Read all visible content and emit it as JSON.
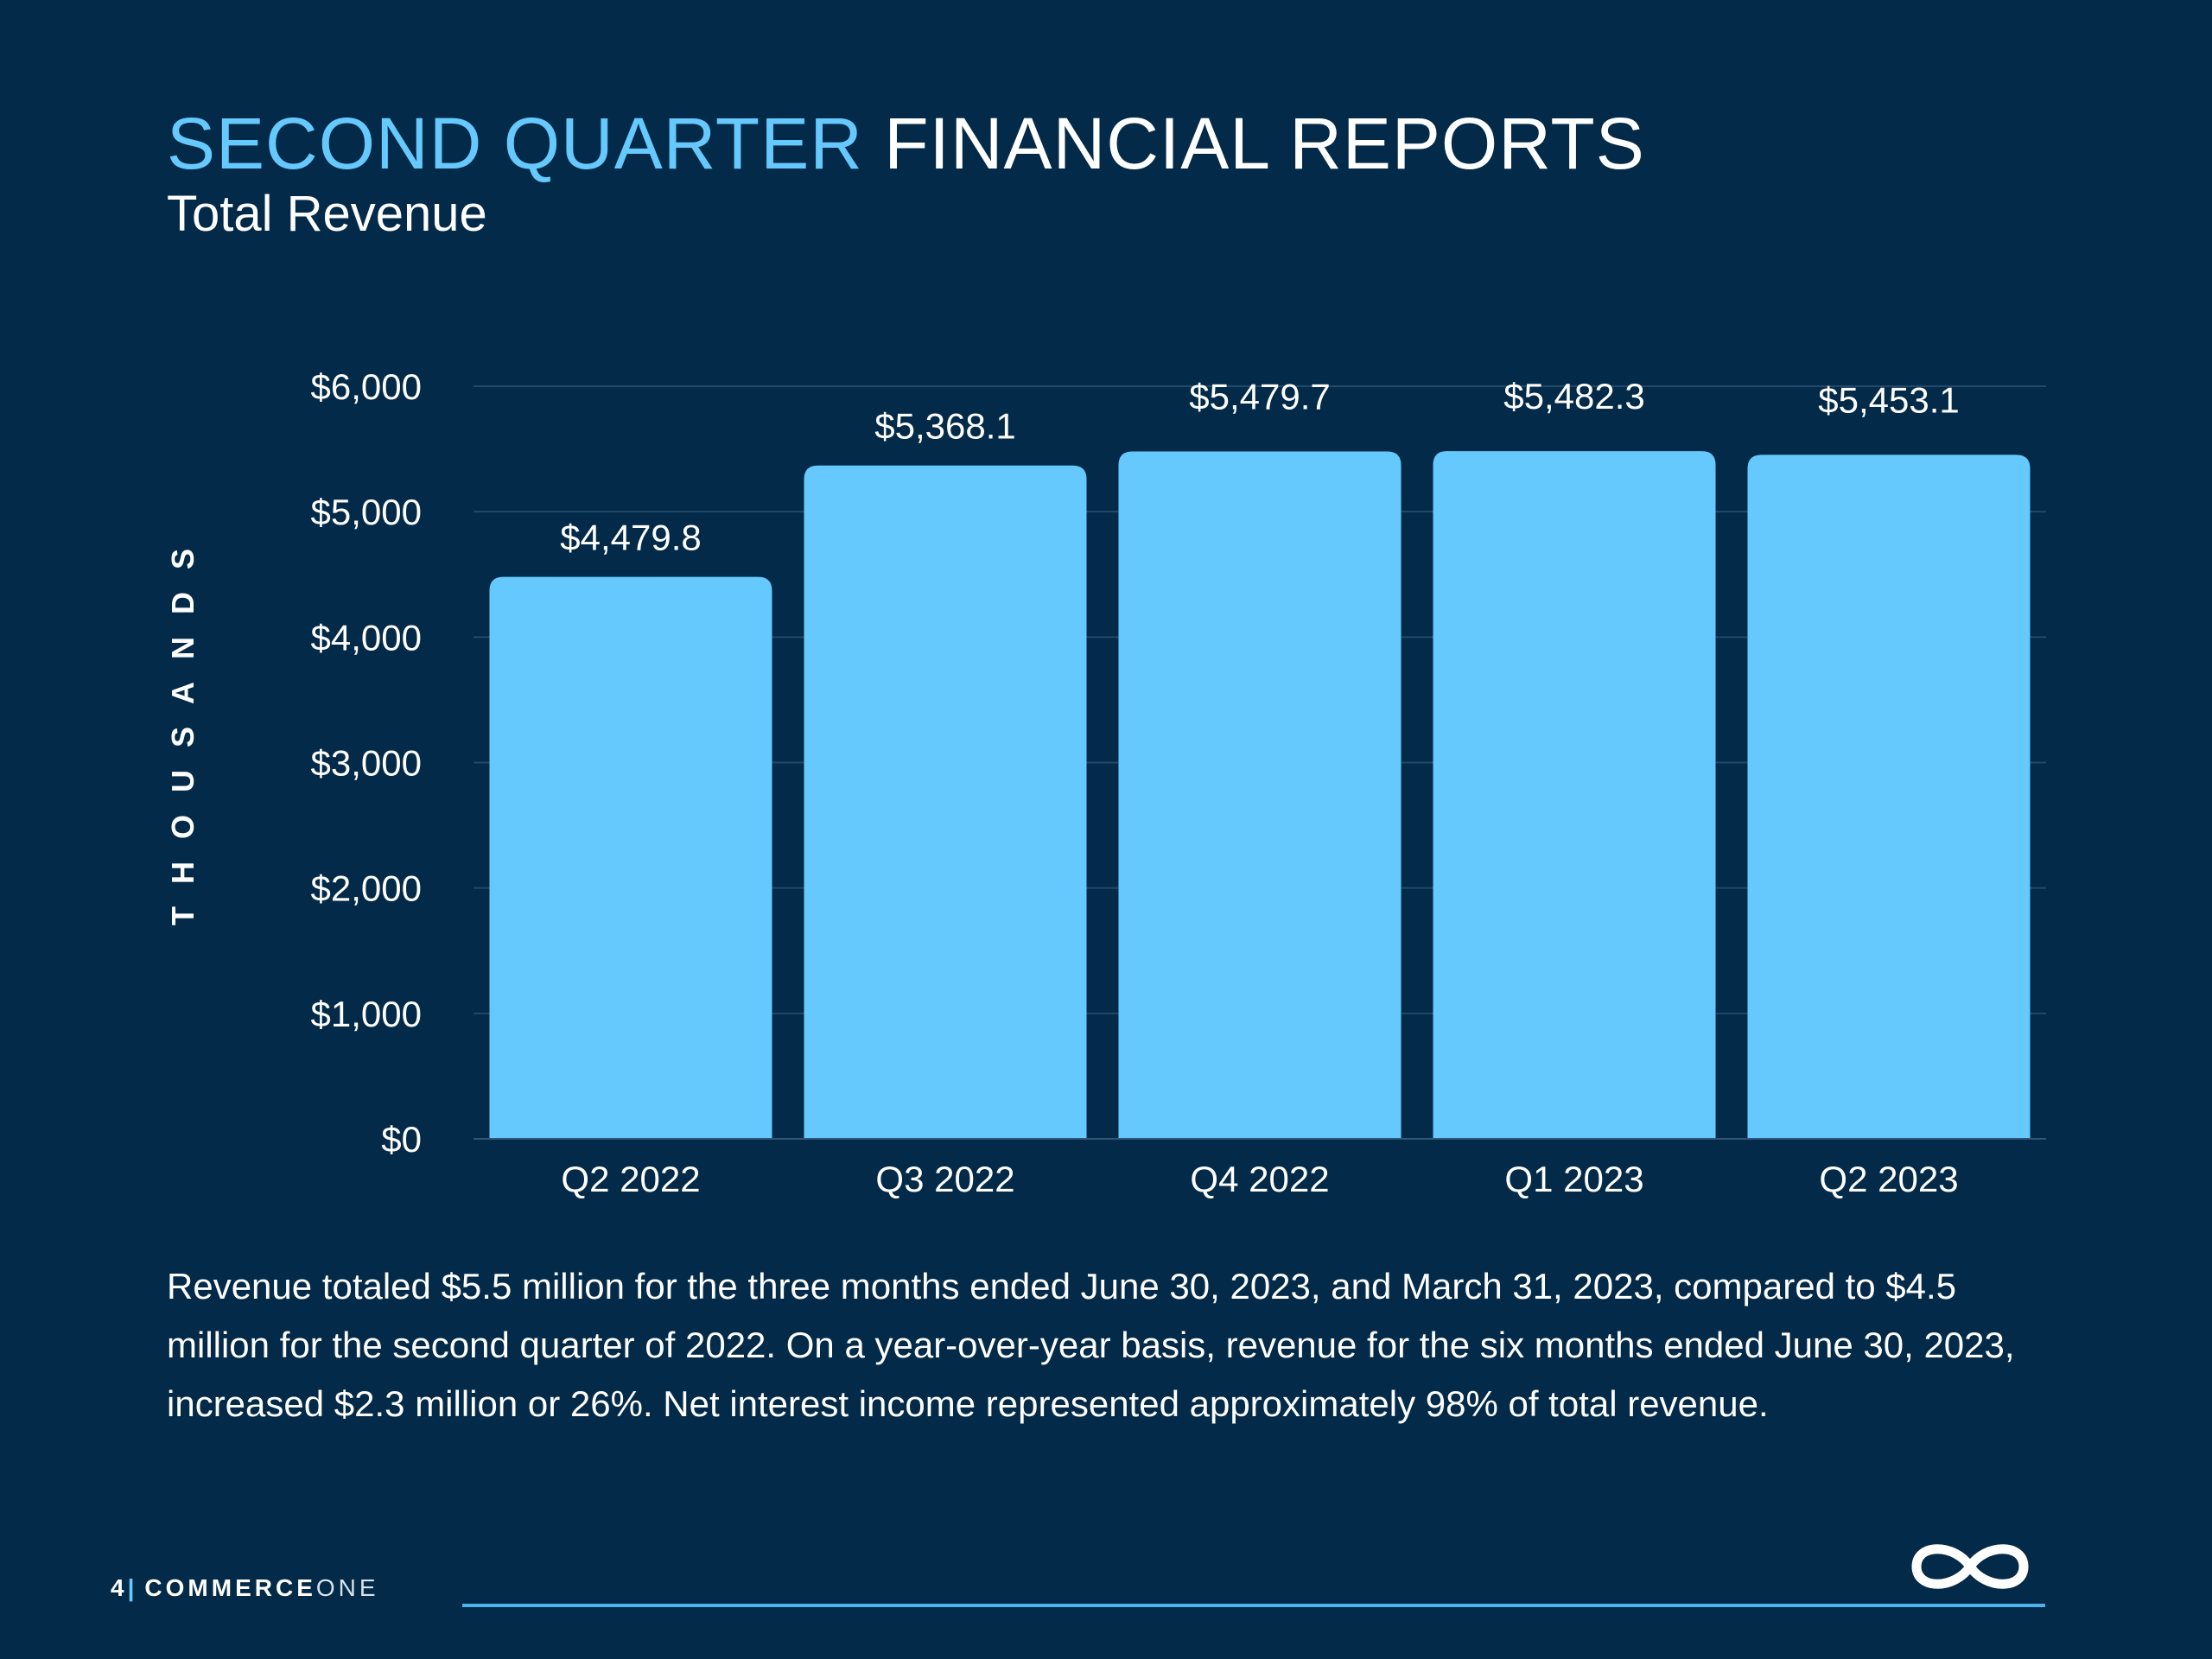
{
  "header": {
    "title_accent": "SECOND QUARTER",
    "title_rest": "FINANCIAL REPORTS",
    "subtitle": "Total Revenue"
  },
  "chart_data": {
    "type": "bar",
    "ylabel": "THOUSANDS",
    "categories": [
      "Q2 2022",
      "Q3 2022",
      "Q4 2022",
      "Q1 2023",
      "Q2 2023"
    ],
    "values": [
      4479.8,
      5368.1,
      5479.7,
      5482.3,
      5453.1
    ],
    "data_labels": [
      "$4,479.8",
      "$5,368.1",
      "$5,479.7",
      "$5,482.3",
      "$5,453.1"
    ],
    "yticks": [
      0,
      1000,
      2000,
      3000,
      4000,
      5000,
      6000
    ],
    "ytick_labels": [
      "$0",
      "$1,000",
      "$2,000",
      "$3,000",
      "$4,000",
      "$5,000",
      "$6,000"
    ],
    "ylim": [
      0,
      6000
    ],
    "grid": true,
    "bar_color": "#66c9fd"
  },
  "body_text": "Revenue totaled $5.5 million for the three months ended June 30, 2023, and March 31, 2023, compared to $4.5 million for the second quarter of 2022. On a year-over-year basis, revenue for the six months ended June 30, 2023, increased $2.3 million or 26%. Net interest income represented approximately 98% of total revenue.",
  "footer": {
    "page_number": "4",
    "separator": "|",
    "brand_bold": "COMMERCE",
    "brand_light": "ONE",
    "logo_icon": "infinity-icon"
  },
  "colors": {
    "background": "#032a48",
    "accent": "#66c9fd",
    "footer_line": "#4fb2ea"
  }
}
